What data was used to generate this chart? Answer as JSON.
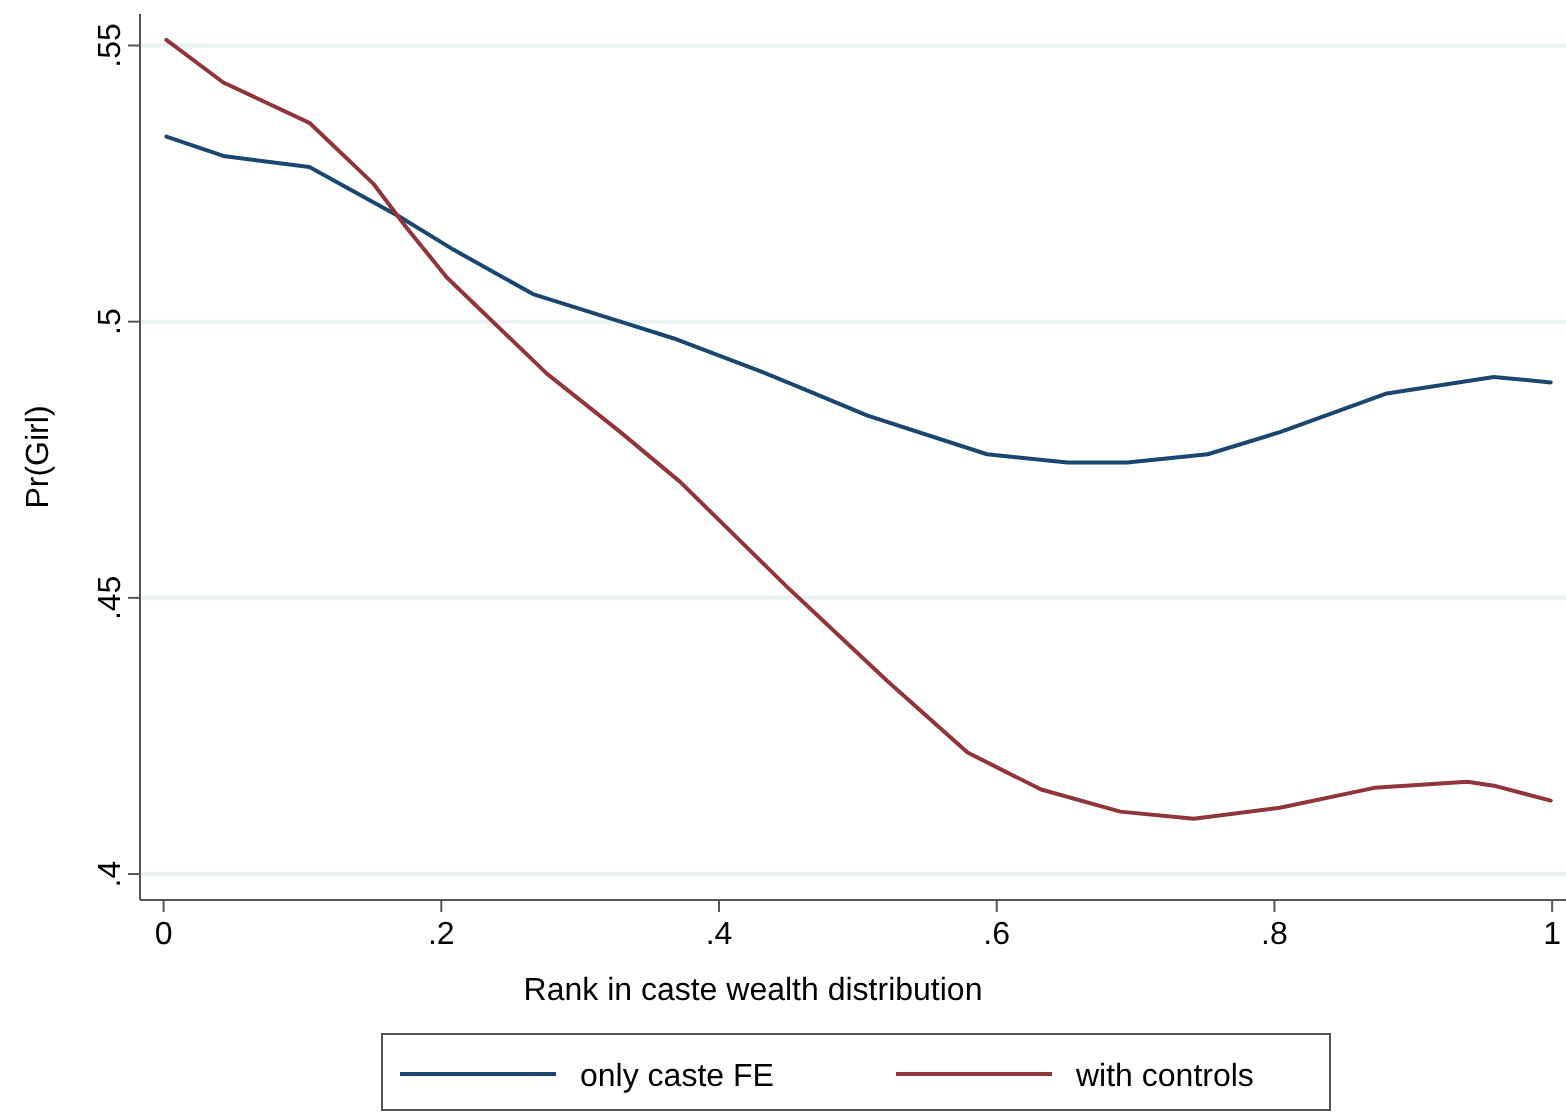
{
  "chart_data": {
    "type": "line",
    "xlabel": "Rank in caste wealth distribution",
    "ylabel": "Pr(Girl)",
    "xlim": [
      -0.017,
      1.01
    ],
    "ylim": [
      0.3953,
      0.5557
    ],
    "xticks": [
      0,
      {
        "value": 0.2,
        "label": ".2"
      },
      {
        "value": 0.4,
        "label": ".4"
      },
      {
        "value": 0.6,
        "label": ".6"
      },
      {
        "value": 0.8,
        "label": ".8"
      },
      1
    ],
    "yticks": [
      {
        "value": 0.4,
        "label": ".4"
      },
      {
        "value": 0.45,
        "label": ".45"
      },
      {
        "value": 0.5,
        "label": ".5"
      },
      {
        "value": 0.55,
        "label": ".55"
      }
    ],
    "grid": "y",
    "legend": "bottom",
    "line_style": "solid",
    "marker": "none",
    "series": [
      {
        "name": "only caste FE",
        "color": "#1a476f",
        "x": [
          0.002,
          0.043,
          0.105,
          0.17,
          0.209,
          0.266,
          0.329,
          0.367,
          0.43,
          0.459,
          0.507,
          0.593,
          0.651,
          0.694,
          0.752,
          0.804,
          0.881,
          0.958,
          0.999
        ],
        "values": [
          0.5335,
          0.53,
          0.528,
          0.519,
          0.513,
          0.505,
          0.5,
          0.497,
          0.491,
          0.488,
          0.483,
          0.476,
          0.4745,
          0.4745,
          0.476,
          0.48,
          0.487,
          0.49,
          0.489
        ]
      },
      {
        "name": "with controls",
        "color": "#90353b",
        "x": [
          0.002,
          0.043,
          0.105,
          0.151,
          0.175,
          0.204,
          0.276,
          0.329,
          0.372,
          0.449,
          0.521,
          0.579,
          0.632,
          0.689,
          0.742,
          0.804,
          0.872,
          0.939,
          0.958,
          0.999
        ],
        "values": [
          0.551,
          0.5433,
          0.536,
          0.525,
          0.517,
          0.508,
          0.4906,
          0.48,
          0.471,
          0.452,
          0.435,
          0.422,
          0.4153,
          0.4113,
          0.41,
          0.412,
          0.4156,
          0.4167,
          0.416,
          0.4133
        ]
      }
    ]
  }
}
